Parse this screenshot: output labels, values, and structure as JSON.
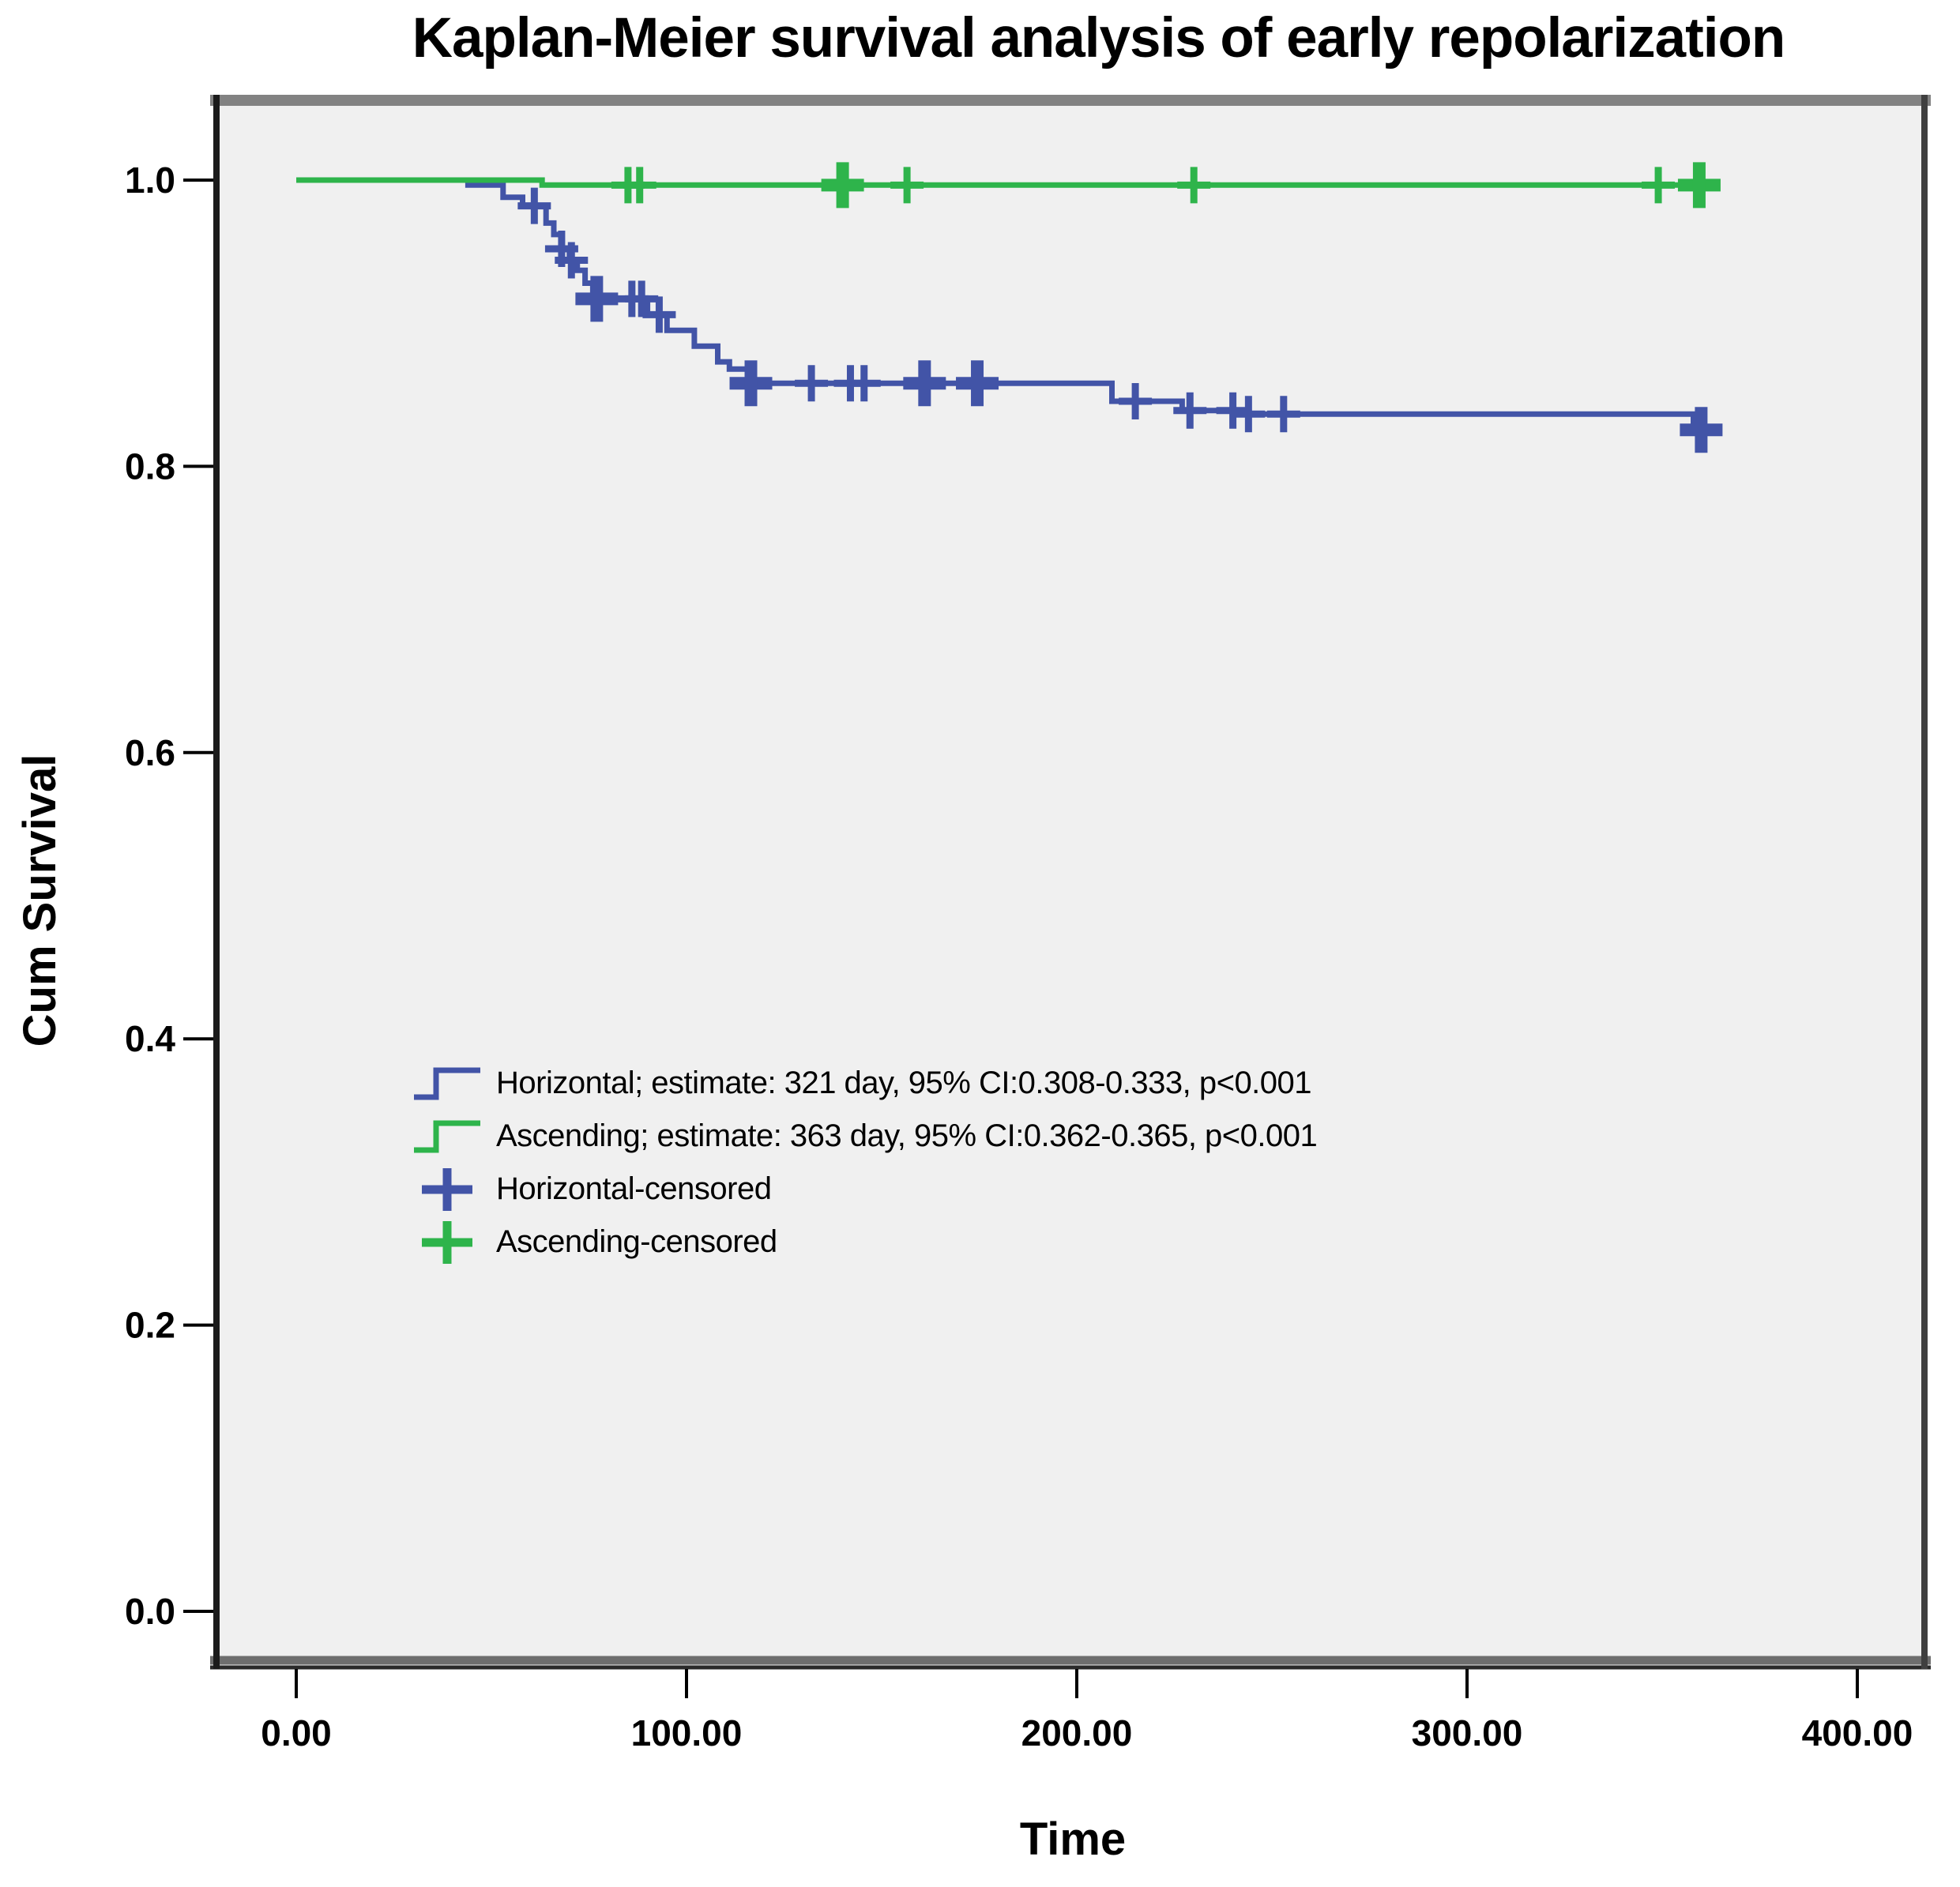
{
  "page": {
    "background": "#ffffff"
  },
  "chart_data": {
    "type": "line",
    "subtype": "kaplan_meier_step",
    "title": "Kaplan-Meier survival analysis of early repolarization",
    "xlabel": "Time",
    "ylabel": "Cum Survival",
    "xlim": [
      0,
      418
    ],
    "ylim": [
      0,
      1.06
    ],
    "grid": false,
    "legend_position": "inside-left-middle",
    "plot_background": "#f0f0f0",
    "axis_text_color": "#000000",
    "x_ticks": [
      {
        "t": 0,
        "label": "0.00"
      },
      {
        "t": 100,
        "label": "100.00"
      },
      {
        "t": 200,
        "label": "200.00"
      },
      {
        "t": 300,
        "label": "300.00"
      },
      {
        "t": 400,
        "label": "400.00"
      }
    ],
    "y_ticks": [
      {
        "v": 1.0,
        "label": "1.0"
      },
      {
        "v": 0.8,
        "label": "0.8"
      },
      {
        "v": 0.6,
        "label": "0.6"
      },
      {
        "v": 0.4,
        "label": "0.4"
      },
      {
        "v": 0.2,
        "label": "0.2"
      },
      {
        "v": 0.0,
        "label": "0.0"
      }
    ],
    "series": [
      {
        "name": "Horizontal",
        "color": "#4254a7",
        "end_t": 364,
        "steps": [
          [
            0,
            1.0
          ],
          [
            44,
            0.9965
          ],
          [
            53,
            0.988
          ],
          [
            58,
            0.982
          ],
          [
            64,
            0.97
          ],
          [
            66,
            0.962
          ],
          [
            68,
            0.952
          ],
          [
            70,
            0.944
          ],
          [
            72,
            0.937
          ],
          [
            74,
            0.928
          ],
          [
            76,
            0.917
          ],
          [
            90,
            0.906
          ],
          [
            95,
            0.895
          ],
          [
            102,
            0.884
          ],
          [
            108,
            0.873
          ],
          [
            111,
            0.868
          ],
          [
            116,
            0.858
          ],
          [
            209,
            0.8455
          ],
          [
            227,
            0.839
          ],
          [
            241,
            0.8365
          ],
          [
            358,
            0.8255
          ]
        ],
        "censored": [
          {
            "t": 61,
            "v": 0.982,
            "bold": false
          },
          {
            "t": 68,
            "v": 0.952,
            "bold": false
          },
          {
            "t": 70.5,
            "v": 0.944,
            "bold": false
          },
          {
            "t": 77,
            "v": 0.917,
            "bold": true
          },
          {
            "t": 86,
            "v": 0.917,
            "bold": false
          },
          {
            "t": 88.5,
            "v": 0.917,
            "bold": false
          },
          {
            "t": 93,
            "v": 0.906,
            "bold": false
          },
          {
            "t": 116.5,
            "v": 0.858,
            "bold": true
          },
          {
            "t": 132,
            "v": 0.858,
            "bold": false
          },
          {
            "t": 142,
            "v": 0.858,
            "bold": false
          },
          {
            "t": 145.5,
            "v": 0.858,
            "bold": false
          },
          {
            "t": 161,
            "v": 0.858,
            "bold": true
          },
          {
            "t": 174.5,
            "v": 0.858,
            "bold": true
          },
          {
            "t": 215,
            "v": 0.8455,
            "bold": false
          },
          {
            "t": 229,
            "v": 0.839,
            "bold": false
          },
          {
            "t": 240,
            "v": 0.839,
            "bold": false
          },
          {
            "t": 244,
            "v": 0.8365,
            "bold": false
          },
          {
            "t": 253,
            "v": 0.8365,
            "bold": false
          },
          {
            "t": 360,
            "v": 0.8255,
            "bold": true
          }
        ]
      },
      {
        "name": "Ascending",
        "color": "#2eb44b",
        "end_t": 364,
        "steps": [
          [
            0,
            1.0
          ],
          [
            63,
            0.9965
          ]
        ],
        "censored": [
          {
            "t": 85,
            "v": 0.9965,
            "bold": false
          },
          {
            "t": 88,
            "v": 0.9965,
            "bold": false
          },
          {
            "t": 140,
            "v": 0.9965,
            "bold": true
          },
          {
            "t": 156.5,
            "v": 0.9965,
            "bold": false
          },
          {
            "t": 230,
            "v": 0.9965,
            "bold": false
          },
          {
            "t": 349,
            "v": 0.9965,
            "bold": false
          },
          {
            "t": 359.5,
            "v": 0.9965,
            "bold": true
          }
        ]
      }
    ],
    "legend": [
      {
        "swatch": "step",
        "series": 0,
        "label": "Horizontal; estimate: 321 day, 95% CI:0.308-0.333, p<0.001"
      },
      {
        "swatch": "step",
        "series": 1,
        "label": "Ascending; estimate: 363 day, 95% CI:0.362-0.365, p<0.001"
      },
      {
        "swatch": "plus",
        "series": 0,
        "label": "Horizontal-censored"
      },
      {
        "swatch": "plus",
        "series": 1,
        "label": "Ascending-censored"
      }
    ]
  }
}
